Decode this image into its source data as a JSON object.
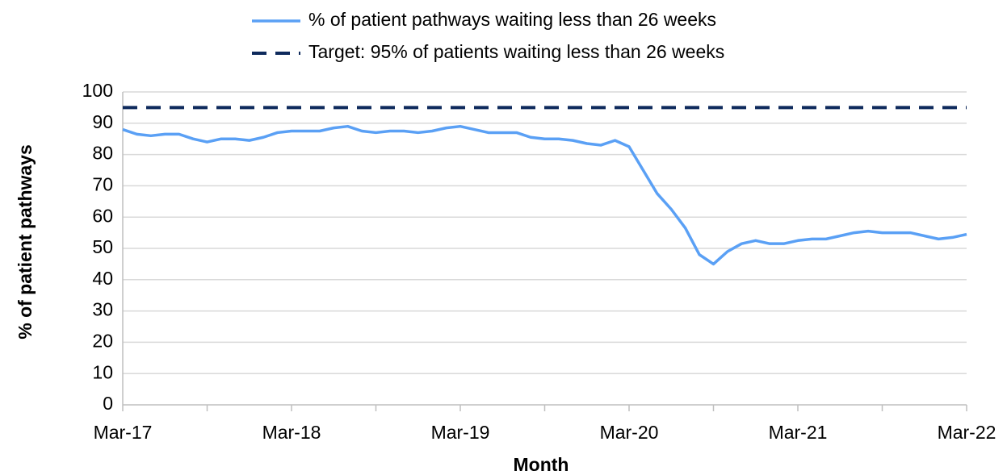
{
  "chart_data": {
    "type": "line",
    "categories": [
      "Mar-17",
      null,
      null,
      null,
      null,
      null,
      null,
      null,
      null,
      null,
      null,
      null,
      "Mar-18",
      null,
      null,
      null,
      null,
      null,
      null,
      null,
      null,
      null,
      null,
      null,
      "Mar-19",
      null,
      null,
      null,
      null,
      null,
      null,
      null,
      null,
      null,
      null,
      null,
      "Mar-20",
      null,
      null,
      null,
      null,
      null,
      null,
      null,
      null,
      null,
      null,
      null,
      "Mar-21",
      null,
      null,
      null,
      null,
      null,
      null,
      null,
      null,
      null,
      null,
      null,
      "Mar-22"
    ],
    "series": [
      {
        "name": "% of patient pathways waiting less than 26 weeks",
        "color": "#5aa0f5",
        "style": "solid",
        "values": [
          88,
          86.5,
          86,
          86.5,
          86.5,
          85,
          84,
          85,
          85,
          84.5,
          85.5,
          87,
          87.5,
          87.5,
          87.5,
          88.5,
          89,
          87.5,
          87,
          87.5,
          87.5,
          87,
          87.5,
          88.5,
          89,
          88,
          87,
          87,
          87,
          85.5,
          85,
          85,
          84.5,
          83.5,
          83,
          84.5,
          82.5,
          75,
          67.5,
          62.5,
          56.5,
          48,
          45,
          49,
          51.5,
          52.5,
          51.5,
          51.5,
          52.5,
          53,
          53,
          54,
          55,
          55.5,
          55,
          55,
          55,
          54,
          53,
          53.5,
          54.5
        ]
      },
      {
        "name": "Target: 95% of patients waiting less than 26 weeks",
        "color": "#0e2a5c",
        "style": "dashed",
        "values": [
          95,
          95,
          95,
          95,
          95,
          95,
          95,
          95,
          95,
          95,
          95,
          95,
          95,
          95,
          95,
          95,
          95,
          95,
          95,
          95,
          95,
          95,
          95,
          95,
          95,
          95,
          95,
          95,
          95,
          95,
          95,
          95,
          95,
          95,
          95,
          95,
          95,
          95,
          95,
          95,
          95,
          95,
          95,
          95,
          95,
          95,
          95,
          95,
          95,
          95,
          95,
          95,
          95,
          95,
          95,
          95,
          95,
          95,
          95,
          95,
          95
        ]
      }
    ],
    "x_label": "Month",
    "y_label": "% of patient pathways",
    "ylim": [
      0,
      100
    ],
    "yticks": [
      0,
      10,
      20,
      30,
      40,
      50,
      60,
      70,
      80,
      90,
      100
    ],
    "grid": true,
    "legend": "top"
  }
}
